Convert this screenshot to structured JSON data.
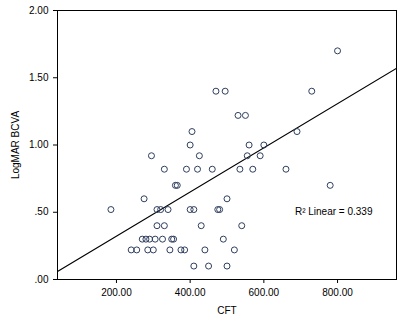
{
  "chart_data": {
    "type": "scatter",
    "x_label": "CFT",
    "y_label": "LogMAR BCVA",
    "annotation": "R² Linear = 0.339",
    "marker": "circle",
    "color": "#2f3f5f",
    "x": [
      185,
      240,
      255,
      270,
      275,
      280,
      285,
      290,
      295,
      300,
      305,
      310,
      310,
      320,
      325,
      330,
      330,
      340,
      345,
      350,
      355,
      360,
      365,
      375,
      385,
      390,
      400,
      400,
      405,
      410,
      410,
      420,
      425,
      430,
      440,
      450,
      460,
      470,
      475,
      480,
      490,
      495,
      500,
      500,
      520,
      530,
      535,
      540,
      550,
      555,
      560,
      570,
      590,
      600,
      660,
      690,
      730,
      780,
      800
    ],
    "values": [
      0.52,
      0.22,
      0.22,
      0.3,
      0.6,
      0.3,
      0.22,
      0.3,
      0.92,
      0.22,
      0.3,
      0.52,
      0.4,
      0.52,
      0.3,
      0.4,
      0.82,
      0.52,
      0.22,
      0.3,
      0.3,
      0.7,
      0.7,
      0.22,
      0.22,
      0.82,
      1.0,
      0.52,
      1.1,
      0.52,
      0.1,
      0.82,
      0.92,
      0.4,
      0.22,
      0.1,
      0.82,
      1.4,
      0.52,
      0.52,
      0.3,
      1.4,
      0.1,
      0.6,
      0.22,
      1.22,
      0.82,
      0.4,
      1.22,
      0.92,
      1.0,
      0.82,
      0.92,
      1.0,
      0.82,
      1.1,
      1.4,
      0.7,
      1.7
    ],
    "fit_line": {
      "x": [
        40,
        960
      ],
      "values": [
        0.06,
        1.57
      ],
      "color": "#000000",
      "line_style": "solid"
    },
    "xlim": [
      40,
      960
    ],
    "xticks": [
      {
        "value": 200,
        "label": "200.00"
      },
      {
        "value": 400,
        "label": "400.00"
      },
      {
        "value": 600,
        "label": "600.00"
      },
      {
        "value": 800,
        "label": "800.00"
      }
    ],
    "ylim": [
      0,
      2
    ],
    "yticks": [
      {
        "value": 0,
        "label": ".00"
      },
      {
        "value": 0.5,
        "label": ".50"
      },
      {
        "value": 1,
        "label": "1.00"
      },
      {
        "value": 1.5,
        "label": "1.50"
      },
      {
        "value": 2,
        "label": "2.00"
      }
    ],
    "grid": false
  }
}
